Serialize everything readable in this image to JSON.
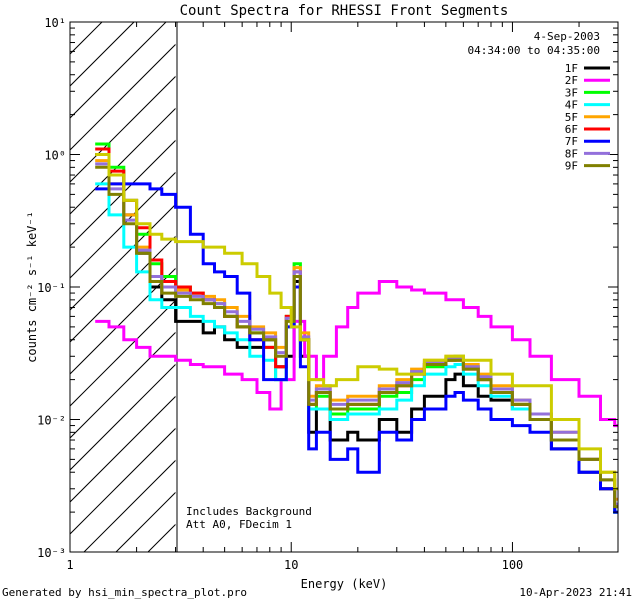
{
  "chart_data": {
    "type": "line",
    "title": "Count Spectra for RHESSI Front Segments",
    "xlabel": "Energy (keV)",
    "ylabel": "counts cm⁻² s⁻¹ keV⁻¹",
    "xscale": "log",
    "yscale": "log",
    "xlim": [
      1,
      300
    ],
    "ylim": [
      0.001,
      10
    ],
    "x_ticks": [
      {
        "value": 1,
        "label": "1"
      },
      {
        "value": 10,
        "label": "10"
      },
      {
        "value": 100,
        "label": "100"
      }
    ],
    "y_ticks": [
      {
        "value": 10,
        "label": "10¹"
      },
      {
        "value": 1,
        "label": "10⁰"
      },
      {
        "value": 0.1,
        "label": "10⁻¹"
      },
      {
        "value": 0.01,
        "label": "10⁻²"
      },
      {
        "value": 0.001,
        "label": "10⁻³"
      }
    ],
    "date": "4-Sep-2003",
    "time_range": "04:34:00 to 04:35:00",
    "hatched_region": [
      1,
      3
    ],
    "annotations": [
      "Includes Background",
      "Att A0, FDecim 1"
    ],
    "series": [
      {
        "name": "1F",
        "color": "#000000",
        "x": [
          1.3,
          1.5,
          1.75,
          2.0,
          2.3,
          2.6,
          3.0,
          3.5,
          4.0,
          4.5,
          5.0,
          5.7,
          6.5,
          7.5,
          8.5,
          9.5,
          10.3,
          11,
          12,
          13,
          15,
          18,
          20,
          25,
          30,
          35,
          40,
          50,
          55,
          60,
          70,
          80,
          100,
          120,
          150,
          200,
          250,
          290
        ],
        "values": [
          1.0,
          0.7,
          0.35,
          0.18,
          0.1,
          0.08,
          0.055,
          0.055,
          0.045,
          0.05,
          0.04,
          0.035,
          0.035,
          0.04,
          0.025,
          0.03,
          0.11,
          0.03,
          0.008,
          0.012,
          0.007,
          0.008,
          0.007,
          0.01,
          0.008,
          0.012,
          0.015,
          0.02,
          0.022,
          0.018,
          0.015,
          0.014,
          0.012,
          0.01,
          0.006,
          0.004,
          0.003,
          0.002
        ]
      },
      {
        "name": "2F",
        "color": "#ff00ff",
        "x": [
          1.3,
          1.5,
          1.75,
          2.0,
          2.3,
          2.6,
          3.0,
          3.5,
          4.0,
          5.0,
          6.0,
          7.0,
          8.0,
          9.0,
          10.3,
          11.5,
          13,
          14,
          16,
          18,
          20,
          25,
          30,
          35,
          40,
          50,
          60,
          70,
          80,
          100,
          120,
          150,
          200,
          250,
          290
        ],
        "values": [
          0.055,
          0.05,
          0.04,
          0.035,
          0.03,
          0.03,
          0.028,
          0.026,
          0.025,
          0.022,
          0.02,
          0.016,
          0.012,
          0.02,
          0.055,
          0.03,
          0.02,
          0.03,
          0.05,
          0.07,
          0.09,
          0.11,
          0.1,
          0.095,
          0.09,
          0.08,
          0.07,
          0.06,
          0.05,
          0.04,
          0.03,
          0.02,
          0.015,
          0.01,
          0.009
        ]
      },
      {
        "name": "3F",
        "color": "#00ff00",
        "x": [
          1.3,
          1.5,
          1.75,
          2.0,
          2.3,
          2.6,
          3.0,
          3.5,
          4.0,
          4.5,
          5.0,
          5.7,
          6.5,
          7.5,
          8.5,
          9.5,
          10.3,
          11,
          12,
          13,
          15,
          18,
          20,
          25,
          30,
          35,
          40,
          50,
          55,
          60,
          70,
          80,
          100,
          120,
          150,
          200,
          250,
          290
        ],
        "values": [
          1.2,
          0.8,
          0.45,
          0.25,
          0.15,
          0.12,
          0.1,
          0.09,
          0.08,
          0.075,
          0.06,
          0.05,
          0.045,
          0.035,
          0.02,
          0.06,
          0.15,
          0.04,
          0.012,
          0.015,
          0.011,
          0.012,
          0.012,
          0.015,
          0.016,
          0.02,
          0.025,
          0.028,
          0.03,
          0.025,
          0.02,
          0.016,
          0.013,
          0.01,
          0.007,
          0.005,
          0.003,
          0.002
        ]
      },
      {
        "name": "4F",
        "color": "#00ffff",
        "x": [
          1.3,
          1.5,
          1.75,
          2.0,
          2.3,
          2.6,
          3.0,
          3.5,
          4.0,
          4.5,
          5.0,
          5.7,
          6.5,
          7.5,
          8.5,
          9.5,
          10.3,
          11,
          12,
          13,
          15,
          18,
          20,
          25,
          30,
          35,
          40,
          50,
          55,
          60,
          70,
          80,
          100,
          120,
          150,
          200,
          250,
          290
        ],
        "values": [
          0.6,
          0.35,
          0.2,
          0.13,
          0.08,
          0.07,
          0.07,
          0.06,
          0.055,
          0.05,
          0.045,
          0.04,
          0.03,
          0.028,
          0.02,
          0.05,
          0.12,
          0.04,
          0.012,
          0.012,
          0.01,
          0.011,
          0.011,
          0.012,
          0.014,
          0.018,
          0.022,
          0.025,
          0.026,
          0.022,
          0.018,
          0.015,
          0.012,
          0.01,
          0.007,
          0.005,
          0.003,
          0.002
        ]
      },
      {
        "name": "5F",
        "color": "#ffa500",
        "x": [
          1.3,
          1.5,
          1.75,
          2.0,
          2.3,
          2.6,
          3.0,
          3.5,
          4.0,
          4.5,
          5.0,
          5.7,
          6.5,
          7.5,
          8.5,
          9.5,
          10.3,
          11,
          12,
          13,
          15,
          18,
          20,
          25,
          30,
          35,
          40,
          50,
          55,
          60,
          70,
          80,
          100,
          120,
          150,
          200,
          250,
          290
        ],
        "values": [
          0.9,
          0.6,
          0.35,
          0.2,
          0.12,
          0.1,
          0.095,
          0.09,
          0.085,
          0.08,
          0.07,
          0.06,
          0.05,
          0.045,
          0.035,
          0.06,
          0.14,
          0.045,
          0.015,
          0.018,
          0.014,
          0.015,
          0.015,
          0.018,
          0.02,
          0.024,
          0.028,
          0.03,
          0.03,
          0.026,
          0.022,
          0.018,
          0.014,
          0.011,
          0.008,
          0.005,
          0.004,
          0.0025
        ]
      },
      {
        "name": "6F",
        "color": "#ff0000",
        "x": [
          1.3,
          1.5,
          1.75,
          2.0,
          2.3,
          2.6,
          3.0,
          3.5,
          4.0,
          4.5,
          5.0,
          5.7,
          6.5,
          7.5,
          8.5,
          9.5,
          10.3,
          11,
          12,
          13,
          15,
          18,
          20,
          25,
          30,
          35,
          40,
          50,
          55,
          60,
          70,
          80,
          100,
          120,
          150,
          200,
          250,
          290
        ],
        "values": [
          1.1,
          0.75,
          0.45,
          0.28,
          0.16,
          0.11,
          0.1,
          0.09,
          0.08,
          0.07,
          0.06,
          0.05,
          0.04,
          0.035,
          0.025,
          0.06,
          0.13,
          0.04,
          0.013,
          0.016,
          0.012,
          0.013,
          0.013,
          0.016,
          0.018,
          0.022,
          0.026,
          0.028,
          0.028,
          0.024,
          0.02,
          0.016,
          0.013,
          0.01,
          0.007,
          0.005,
          0.003,
          0.0022
        ]
      },
      {
        "name": "7F",
        "color": "#0000ff",
        "x": [
          1.3,
          1.5,
          1.75,
          2.0,
          2.3,
          2.6,
          3.0,
          3.5,
          4.0,
          4.5,
          5.0,
          5.7,
          6.5,
          7.5,
          8.5,
          9.5,
          10.3,
          11,
          12,
          13,
          15,
          18,
          20,
          25,
          30,
          35,
          40,
          50,
          55,
          60,
          70,
          80,
          100,
          120,
          150,
          200,
          250,
          290
        ],
        "values": [
          0.55,
          0.6,
          0.6,
          0.6,
          0.55,
          0.5,
          0.4,
          0.25,
          0.15,
          0.13,
          0.12,
          0.09,
          0.04,
          0.02,
          0.02,
          0.05,
          0.1,
          0.025,
          0.006,
          0.008,
          0.005,
          0.006,
          0.004,
          0.008,
          0.007,
          0.01,
          0.012,
          0.015,
          0.016,
          0.014,
          0.012,
          0.01,
          0.009,
          0.008,
          0.006,
          0.004,
          0.003,
          0.002
        ]
      },
      {
        "name": "8F",
        "color": "#9370db",
        "x": [
          1.3,
          1.5,
          1.75,
          2.0,
          2.3,
          2.6,
          3.0,
          3.5,
          4.0,
          4.5,
          5.0,
          5.7,
          6.5,
          7.5,
          8.5,
          9.5,
          10.3,
          11,
          12,
          13,
          15,
          18,
          20,
          25,
          30,
          35,
          40,
          50,
          55,
          60,
          70,
          80,
          100,
          120,
          150,
          200,
          250,
          290
        ],
        "values": [
          0.85,
          0.55,
          0.32,
          0.19,
          0.12,
          0.1,
          0.09,
          0.085,
          0.08,
          0.075,
          0.065,
          0.055,
          0.048,
          0.042,
          0.032,
          0.058,
          0.13,
          0.042,
          0.014,
          0.017,
          0.013,
          0.014,
          0.014,
          0.017,
          0.019,
          0.023,
          0.027,
          0.029,
          0.029,
          0.025,
          0.021,
          0.017,
          0.014,
          0.011,
          0.008,
          0.005,
          0.0035,
          0.0023
        ]
      },
      {
        "name": "9F",
        "color": "#808000",
        "x": [
          1.3,
          1.5,
          1.75,
          2.0,
          2.3,
          2.6,
          3.0,
          3.5,
          4.0,
          4.5,
          5.0,
          5.7,
          6.5,
          7.5,
          8.5,
          9.5,
          10.3,
          11,
          12,
          13,
          15,
          18,
          20,
          25,
          30,
          35,
          40,
          50,
          55,
          60,
          70,
          80,
          100,
          120,
          150,
          200,
          250,
          290
        ],
        "values": [
          0.8,
          0.5,
          0.3,
          0.18,
          0.11,
          0.09,
          0.085,
          0.08,
          0.075,
          0.07,
          0.06,
          0.05,
          0.045,
          0.04,
          0.03,
          0.055,
          0.12,
          0.04,
          0.013,
          0.016,
          0.012,
          0.013,
          0.013,
          0.016,
          0.018,
          0.022,
          0.026,
          0.028,
          0.028,
          0.024,
          0.02,
          0.016,
          0.013,
          0.01,
          0.007,
          0.005,
          0.0035,
          0.0022
        ]
      },
      {
        "name": "",
        "color": "#cccc00",
        "x": [
          1.3,
          1.5,
          1.75,
          2.0,
          2.3,
          2.6,
          3.0,
          3.5,
          4.0,
          5.0,
          6.0,
          7.0,
          8.0,
          9.0,
          10.0,
          11,
          12,
          14,
          16,
          20,
          25,
          30,
          40,
          50,
          60,
          80,
          100,
          150,
          200,
          250,
          290
        ],
        "values": [
          1.0,
          0.7,
          0.45,
          0.3,
          0.25,
          0.23,
          0.22,
          0.22,
          0.2,
          0.18,
          0.15,
          0.12,
          0.09,
          0.07,
          0.05,
          0.04,
          0.02,
          0.018,
          0.02,
          0.025,
          0.024,
          0.022,
          0.028,
          0.03,
          0.028,
          0.022,
          0.018,
          0.01,
          0.006,
          0.004,
          0.003
        ]
      }
    ]
  },
  "footer": {
    "generated_by": "Generated by hsi_min_spectra_plot.pro",
    "timestamp": "10-Apr-2023 21:41"
  }
}
